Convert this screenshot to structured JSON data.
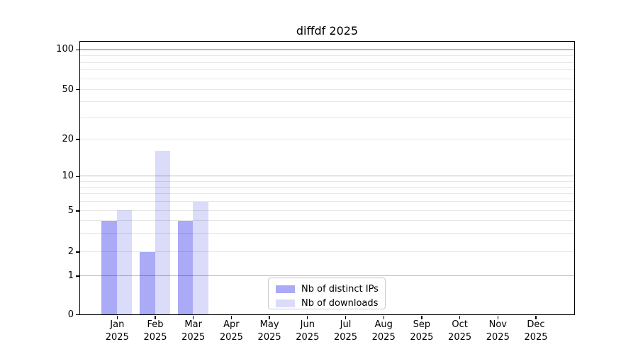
{
  "title": "diffdf 2025",
  "legend": {
    "items": [
      {
        "label": "Nb of distinct IPs",
        "color": "#aaaaf6"
      },
      {
        "label": "Nb of downloads",
        "color": "#dbdbfa"
      }
    ]
  },
  "chart_data": {
    "type": "bar",
    "title": "diffdf 2025",
    "categories": [
      "Jan 2025",
      "Feb 2025",
      "Mar 2025",
      "Apr 2025",
      "May 2025",
      "Jun 2025",
      "Jul 2025",
      "Aug 2025",
      "Sep 2025",
      "Oct 2025",
      "Nov 2025",
      "Dec 2025"
    ],
    "series": [
      {
        "name": "Nb of distinct IPs",
        "color": "#aaaaf6",
        "values": [
          4,
          2,
          4,
          0,
          0,
          0,
          0,
          0,
          0,
          0,
          0,
          0
        ]
      },
      {
        "name": "Nb of downloads",
        "color": "#dbdbfa",
        "values": [
          5,
          16,
          6,
          0,
          0,
          0,
          0,
          0,
          0,
          0,
          0,
          0
        ]
      }
    ],
    "xlabel": "",
    "ylabel": "",
    "yscale": "log-like",
    "y_major_ticks": [
      0,
      1,
      2,
      5,
      10,
      20,
      50,
      100
    ],
    "y_minor_ticks": [
      3,
      4,
      6,
      7,
      8,
      9,
      30,
      40,
      60,
      70,
      80,
      90
    ],
    "ylim": [
      0,
      115
    ],
    "grid": "horizontal",
    "legend_position": "lower center"
  }
}
